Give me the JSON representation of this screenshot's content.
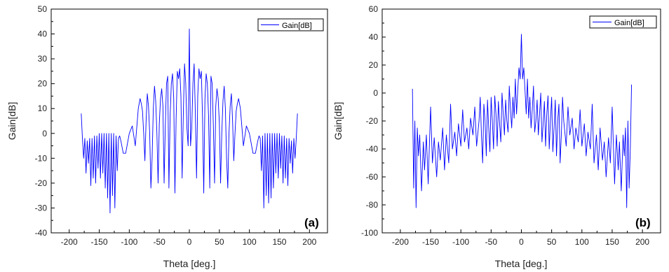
{
  "chart_data": [
    {
      "type": "line",
      "panel_label": "(a)",
      "xlabel": "Theta [deg.]",
      "ylabel": "Gain[dB]",
      "xlim": [
        -230,
        230
      ],
      "ylim": [
        -40,
        50
      ],
      "xticks": [
        -200,
        -150,
        -100,
        -50,
        0,
        50,
        100,
        150,
        200
      ],
      "yticks": [
        -40,
        -30,
        -20,
        -10,
        0,
        10,
        20,
        30,
        40,
        50
      ],
      "legend": "top-right",
      "color": "#0000ff",
      "series": [
        {
          "name": "Gain[dB]",
          "x": [
            -180,
            -178,
            -176,
            -174,
            -172,
            -170,
            -168,
            -166,
            -164,
            -162,
            -160,
            -158,
            -156,
            -154,
            -152,
            -150,
            -148,
            -146,
            -144,
            -142,
            -140,
            -138,
            -136,
            -134,
            -132,
            -130,
            -128,
            -126,
            -124,
            -122,
            -120,
            -118,
            -116,
            -114,
            -110,
            -106,
            -100,
            -95,
            -90,
            -85,
            -82,
            -80,
            -78,
            -76,
            -74,
            -72,
            -70,
            -68,
            -66,
            -64,
            -62,
            -60,
            -58,
            -56,
            -54,
            -52,
            -50,
            -48,
            -46,
            -44,
            -42,
            -40,
            -38,
            -36,
            -34,
            -32,
            -30,
            -28,
            -26,
            -24,
            -22,
            -20,
            -18,
            -16,
            -14,
            -12,
            -10,
            -8,
            -6,
            -4,
            -2,
            0,
            2,
            4,
            6,
            8,
            10,
            12,
            14,
            16,
            18,
            20,
            22,
            24,
            26,
            28,
            30,
            32,
            34,
            36,
            38,
            40,
            42,
            44,
            46,
            48,
            50,
            52,
            54,
            56,
            58,
            60,
            62,
            64,
            66,
            68,
            70,
            72,
            74,
            76,
            78,
            80,
            82,
            85,
            90,
            95,
            100,
            106,
            110,
            114,
            116,
            118,
            120,
            122,
            124,
            126,
            128,
            130,
            132,
            134,
            136,
            138,
            140,
            142,
            144,
            146,
            148,
            150,
            152,
            154,
            156,
            158,
            160,
            162,
            164,
            166,
            168,
            170,
            172,
            174,
            176,
            178,
            180
          ],
          "y": [
            8,
            -2,
            -10,
            -2,
            -16,
            -3,
            -12,
            -2,
            -21,
            -2,
            -18,
            -1,
            -20,
            -1,
            -14,
            0,
            -18,
            0,
            -16,
            0,
            -22,
            0,
            -26,
            0,
            -32,
            0,
            -25,
            0,
            -30,
            -1,
            -15,
            -2,
            -1,
            -3,
            -8,
            -8,
            0,
            3,
            -5,
            10,
            14,
            12,
            9,
            0,
            -11,
            5,
            16,
            11,
            0,
            -22,
            -10,
            10,
            19,
            13,
            0,
            -20,
            4,
            14,
            18,
            11,
            -20,
            3,
            20,
            23,
            -22,
            7,
            20,
            24,
            14,
            -24,
            6,
            25,
            22,
            26,
            15,
            -18,
            8,
            28,
            20,
            2,
            -5,
            42,
            -5,
            2,
            20,
            28,
            8,
            -18,
            15,
            26,
            22,
            25,
            6,
            -24,
            14,
            24,
            20,
            7,
            -22,
            23,
            20,
            3,
            -20,
            11,
            18,
            14,
            4,
            -20,
            0,
            13,
            19,
            10,
            -10,
            -22,
            0,
            11,
            16,
            5,
            -11,
            0,
            9,
            12,
            14,
            10,
            -5,
            3,
            0,
            -8,
            -8,
            -3,
            -1,
            -2,
            -15,
            -1,
            -30,
            0,
            -25,
            0,
            -28,
            0,
            -26,
            0,
            -22,
            0,
            -16,
            0,
            -18,
            0,
            -14,
            -1,
            -20,
            -1,
            -18,
            -2,
            -21,
            -2,
            -12,
            -3,
            -16,
            -2,
            -10,
            -2,
            8
          ]
        }
      ]
    },
    {
      "type": "line",
      "panel_label": "(b)",
      "xlabel": "Theta [deg.]",
      "ylabel": "Gain[dB]",
      "xlim": [
        -230,
        230
      ],
      "ylim": [
        -100,
        60
      ],
      "xticks": [
        -200,
        -150,
        -100,
        -50,
        0,
        50,
        100,
        150,
        200
      ],
      "yticks": [
        -100,
        -80,
        -60,
        -40,
        -20,
        0,
        20,
        40,
        60
      ],
      "legend": "top-right",
      "color": "#0000ff",
      "series": [
        {
          "name": "Gain[dB]",
          "x": [
            -180,
            -178,
            -176,
            -174,
            -172,
            -170,
            -168,
            -165,
            -162,
            -160,
            -157,
            -154,
            -150,
            -147,
            -144,
            -140,
            -137,
            -134,
            -130,
            -127,
            -124,
            -120,
            -117,
            -114,
            -110,
            -107,
            -104,
            -100,
            -97,
            -94,
            -90,
            -87,
            -84,
            -80,
            -77,
            -74,
            -70,
            -68,
            -66,
            -64,
            -62,
            -60,
            -58,
            -56,
            -54,
            -52,
            -50,
            -48,
            -46,
            -44,
            -42,
            -40,
            -38,
            -36,
            -34,
            -32,
            -30,
            -28,
            -26,
            -24,
            -22,
            -20,
            -18,
            -16,
            -14,
            -12,
            -10,
            -8,
            -6,
            -4,
            -2,
            0,
            2,
            4,
            6,
            8,
            10,
            12,
            14,
            16,
            18,
            20,
            22,
            24,
            26,
            28,
            30,
            32,
            34,
            36,
            38,
            40,
            42,
            44,
            46,
            48,
            50,
            52,
            54,
            56,
            58,
            60,
            62,
            64,
            66,
            68,
            70,
            74,
            77,
            80,
            84,
            87,
            90,
            94,
            97,
            100,
            104,
            107,
            110,
            114,
            117,
            120,
            124,
            127,
            130,
            134,
            137,
            140,
            144,
            147,
            150,
            154,
            157,
            160,
            162,
            165,
            168,
            170,
            172,
            174,
            176,
            178,
            180,
            182
          ],
          "y": [
            3,
            -68,
            -20,
            -82,
            -25,
            -45,
            -30,
            -70,
            -35,
            -55,
            -30,
            -65,
            -10,
            -50,
            -32,
            -60,
            -35,
            -48,
            -25,
            -55,
            -30,
            -50,
            -8,
            -40,
            -28,
            -45,
            -22,
            -38,
            -12,
            -35,
            -25,
            -40,
            -18,
            -30,
            -10,
            -38,
            -20,
            -3,
            -30,
            -50,
            -8,
            -20,
            -45,
            -5,
            -25,
            -42,
            -3,
            -20,
            -40,
            -2,
            -15,
            -38,
            -6,
            -22,
            -35,
            0,
            -15,
            -30,
            -5,
            -20,
            -28,
            5,
            -12,
            -25,
            -3,
            -18,
            10,
            -15,
            2,
            18,
            10,
            42,
            10,
            18,
            2,
            -15,
            10,
            -18,
            -3,
            -25,
            -12,
            5,
            -28,
            -20,
            -5,
            -30,
            -15,
            0,
            -35,
            -22,
            -6,
            -38,
            -15,
            -2,
            -40,
            -20,
            -3,
            -42,
            -25,
            -5,
            -45,
            -20,
            -8,
            -50,
            -30,
            -3,
            -20,
            -38,
            -10,
            -30,
            -18,
            -40,
            -25,
            -35,
            -12,
            -38,
            -22,
            -45,
            -28,
            -40,
            -8,
            -50,
            -30,
            -55,
            -25,
            -48,
            -35,
            -60,
            -32,
            -50,
            -10,
            -65,
            -30,
            -55,
            -35,
            -70,
            -30,
            -45,
            -25,
            -82,
            -20,
            -68,
            -40,
            6
          ]
        }
      ]
    }
  ]
}
